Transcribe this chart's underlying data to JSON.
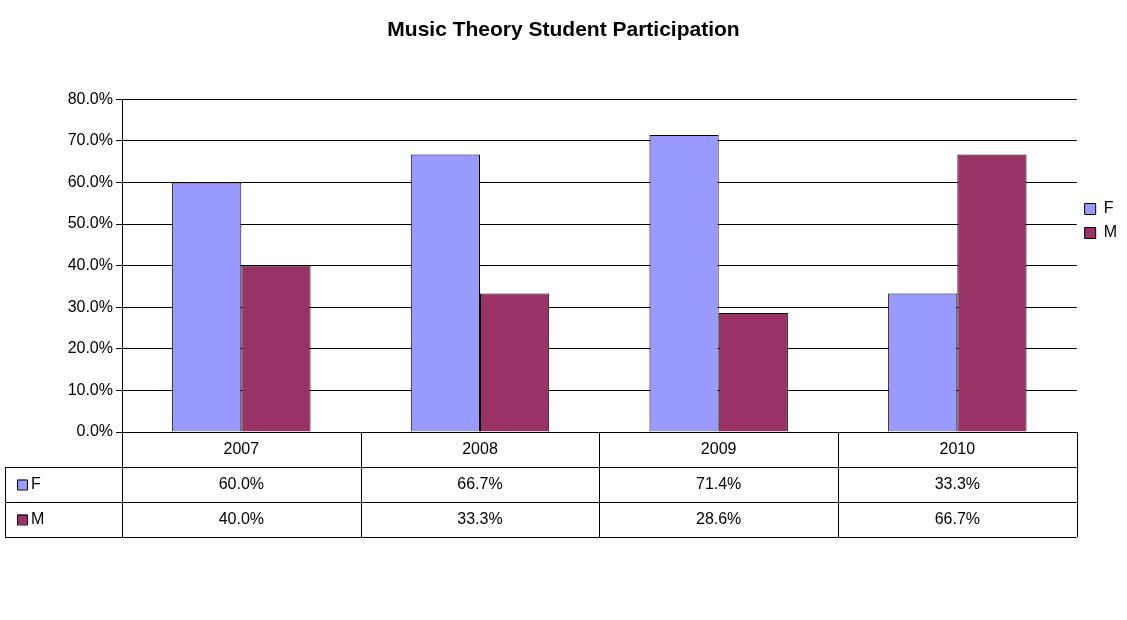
{
  "chart_data": {
    "type": "bar",
    "title": "Music Theory Student Participation",
    "categories": [
      "2007",
      "2008",
      "2009",
      "2010"
    ],
    "series": [
      {
        "name": "F",
        "color": "#9999ff",
        "values": [
          60.0,
          66.7,
          71.4,
          33.3
        ],
        "value_labels": [
          "60.0%",
          "66.7%",
          "71.4%",
          "33.3%"
        ]
      },
      {
        "name": "M",
        "color": "#993366",
        "values": [
          40.0,
          33.3,
          28.6,
          66.7
        ],
        "value_labels": [
          "40.0%",
          "33.3%",
          "28.6%",
          "66.7%"
        ]
      }
    ],
    "ylim": [
      0,
      80
    ],
    "yticks": [
      {
        "value": 0,
        "label": "0.0%"
      },
      {
        "value": 10,
        "label": "10.0%"
      },
      {
        "value": 20,
        "label": "20.0%"
      },
      {
        "value": 30,
        "label": "30.0%"
      },
      {
        "value": 40,
        "label": "40.0%"
      },
      {
        "value": 50,
        "label": "50.0%"
      },
      {
        "value": 60,
        "label": "60.0%"
      },
      {
        "value": 70,
        "label": "70.0%"
      },
      {
        "value": 80,
        "label": "80.0%"
      }
    ],
    "grid": "y",
    "legend": "right"
  }
}
